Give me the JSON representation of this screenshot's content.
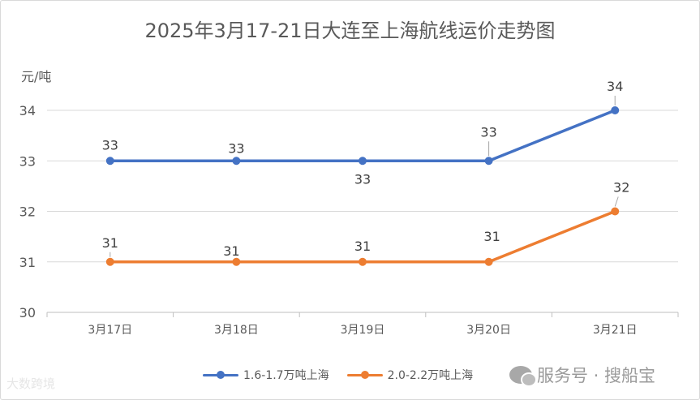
{
  "chart_data": {
    "type": "line",
    "title": "2025年3月17-21日大连至上海航线运价走势图",
    "ylabel": "元/吨",
    "xlabel": "",
    "categories": [
      "3月17日",
      "3月18日",
      "3月19日",
      "3月20日",
      "3月21日"
    ],
    "ylim": [
      30,
      34
    ],
    "yticks": [
      "30",
      "31",
      "32",
      "33",
      "34"
    ],
    "grid": true,
    "legend_position": "bottom",
    "series": [
      {
        "name": "1.6-1.7万吨上海",
        "color": "#4472c4",
        "values": [
          33,
          33,
          33,
          33,
          34
        ],
        "labels": [
          "33",
          "33",
          "33",
          "33",
          "34"
        ]
      },
      {
        "name": "2.0-2.2万吨上海",
        "color": "#ed7d31",
        "values": [
          31,
          31,
          31,
          31,
          32
        ],
        "labels": [
          "31",
          "31",
          "31",
          "31",
          "32"
        ]
      }
    ]
  },
  "watermarks": {
    "left": "大数跨境",
    "right": "服务号 · 搜船宝"
  }
}
